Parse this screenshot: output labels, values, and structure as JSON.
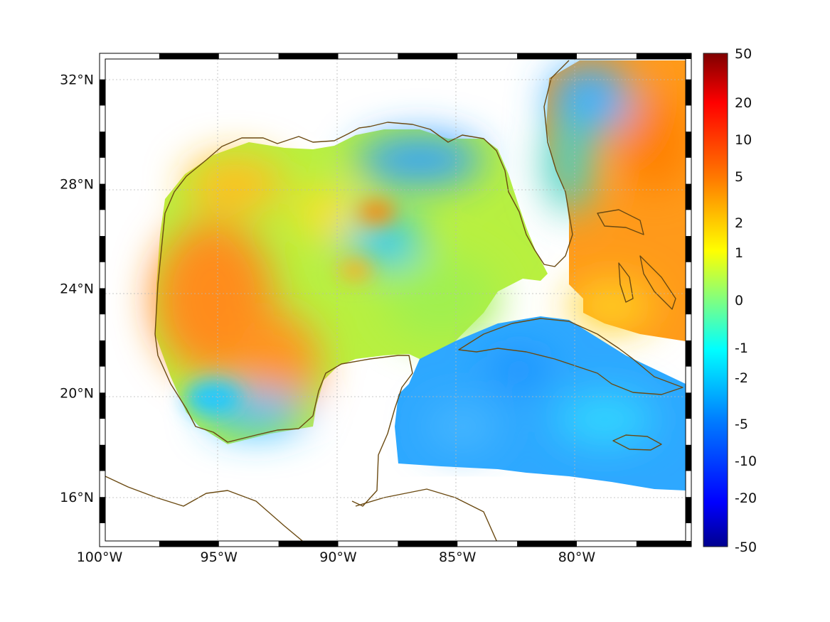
{
  "map": {
    "x_axis_ticks": [
      {
        "lon": -100,
        "label": "100°W"
      },
      {
        "lon": -95,
        "label": "95°W"
      },
      {
        "lon": -90,
        "label": "90°W"
      },
      {
        "lon": -85,
        "label": "85°W"
      },
      {
        "lon": -80,
        "label": "80°W"
      }
    ],
    "y_axis_ticks": [
      {
        "lat": 32,
        "label": "32°N"
      },
      {
        "lat": 28,
        "label": "28°N"
      },
      {
        "lat": 24,
        "label": "24°N"
      },
      {
        "lat": 20,
        "label": "20°N"
      },
      {
        "lat": 16,
        "label": "16°N"
      }
    ],
    "lon_range": [
      -100,
      -75.2
    ],
    "lat_range": [
      14.1,
      33.0
    ],
    "grid": true,
    "coastline_color": "#6b4a12",
    "land_color": "#ffffff",
    "colormap": "jet"
  },
  "colorbar": {
    "ticks": [
      "50",
      "20",
      "10",
      "5",
      "2",
      "1",
      "0",
      "-1",
      "-2",
      "-5",
      "-10",
      "-20",
      "-50"
    ],
    "colors": [
      "#7f0000",
      "#ff0000",
      "#ff8000",
      "#ffff00",
      "#80ff80",
      "#00ffff",
      "#0080ff",
      "#0000ff",
      "#00008f"
    ]
  }
}
